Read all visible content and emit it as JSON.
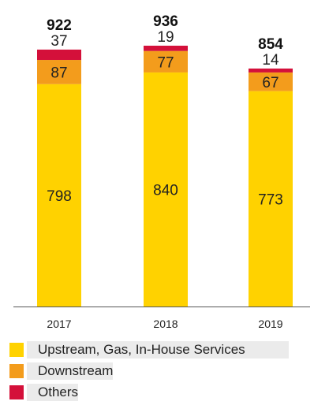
{
  "chart_data": {
    "type": "bar",
    "stacked": true,
    "categories": [
      "2017",
      "2018",
      "2019"
    ],
    "totals": [
      "922",
      "936",
      "854"
    ],
    "series": [
      {
        "name": "Upstream, Gas, In-House Services",
        "values": [
          798,
          840,
          773
        ],
        "color": "#ffd200"
      },
      {
        "name": "Downstream",
        "values": [
          87,
          77,
          67
        ],
        "color": "#f39c1c"
      },
      {
        "name": "Others",
        "values": [
          37,
          19,
          14
        ],
        "color": "#d4103a"
      }
    ],
    "legend_position": "bottom",
    "grid": false
  },
  "legend": [
    {
      "label": "Upstream, Gas, In-House Services",
      "color": "#ffd200"
    },
    {
      "label": "Downstream",
      "color": "#f39c1c"
    },
    {
      "label": "Others",
      "color": "#d4103a"
    }
  ]
}
